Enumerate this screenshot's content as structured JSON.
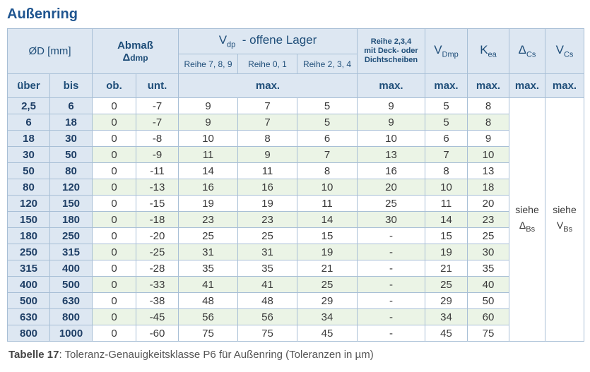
{
  "title": "Außenring",
  "header": {
    "d": "ØD  [mm]",
    "abmass": "Abmaß",
    "abmass_sym": "Δ",
    "abmass_sub": "dmp",
    "vdp": "V",
    "vdp_sub": "dp",
    "vdp_rest": "-  offene Lager",
    "reihe789": "Reihe 7, 8, 9",
    "reihe01": "Reihe 0, 1",
    "reihe234": "Reihe 2, 3, 4",
    "deck": [
      "Reihe 2,3,4",
      "mit Deck- oder",
      "Dichtscheiben"
    ],
    "vdmp": "V",
    "vdmp_sub": "Dmp",
    "kea": "K",
    "kea_sub": "ea",
    "dcs": "Δ",
    "dcs_sub": "Cs",
    "vcs": "V",
    "vcs_sub": "Cs"
  },
  "subheader": [
    "über",
    "bis",
    "ob.",
    "unt.",
    "max.",
    "max.",
    "max.",
    "max.",
    "max.",
    "max."
  ],
  "rows": [
    [
      "2,5",
      "6",
      "0",
      "-7",
      "9",
      "7",
      "5",
      "9",
      "5",
      "8"
    ],
    [
      "6",
      "18",
      "0",
      "-7",
      "9",
      "7",
      "5",
      "9",
      "5",
      "8"
    ],
    [
      "18",
      "30",
      "0",
      "-8",
      "10",
      "8",
      "6",
      "10",
      "6",
      "9"
    ],
    [
      "30",
      "50",
      "0",
      "-9",
      "11",
      "9",
      "7",
      "13",
      "7",
      "10"
    ],
    [
      "50",
      "80",
      "0",
      "-11",
      "14",
      "11",
      "8",
      "16",
      "8",
      "13"
    ],
    [
      "80",
      "120",
      "0",
      "-13",
      "16",
      "16",
      "10",
      "20",
      "10",
      "18"
    ],
    [
      "120",
      "150",
      "0",
      "-15",
      "19",
      "19",
      "11",
      "25",
      "11",
      "20"
    ],
    [
      "150",
      "180",
      "0",
      "-18",
      "23",
      "23",
      "14",
      "30",
      "14",
      "23"
    ],
    [
      "180",
      "250",
      "0",
      "-20",
      "25",
      "25",
      "15",
      "-",
      "15",
      "25"
    ],
    [
      "250",
      "315",
      "0",
      "-25",
      "31",
      "31",
      "19",
      "-",
      "19",
      "30"
    ],
    [
      "315",
      "400",
      "0",
      "-28",
      "35",
      "35",
      "21",
      "-",
      "21",
      "35"
    ],
    [
      "400",
      "500",
      "0",
      "-33",
      "41",
      "41",
      "25",
      "-",
      "25",
      "40"
    ],
    [
      "500",
      "630",
      "0",
      "-38",
      "48",
      "48",
      "29",
      "-",
      "29",
      "50"
    ],
    [
      "630",
      "800",
      "0",
      "-45",
      "56",
      "56",
      "34",
      "-",
      "34",
      "60"
    ],
    [
      "800",
      "1000",
      "0",
      "-60",
      "75",
      "75",
      "45",
      "-",
      "45",
      "75"
    ]
  ],
  "siehe": [
    {
      "text": "siehe",
      "sym": "Δ",
      "sub": "Bs"
    },
    {
      "text": "siehe",
      "sym": "V",
      "sub": "Bs"
    }
  ],
  "caption": {
    "label": "Tabelle 17",
    "text": ": Toleranz-Genauigkeitsklasse P6 für Außenring (Toleranzen in µm)"
  }
}
